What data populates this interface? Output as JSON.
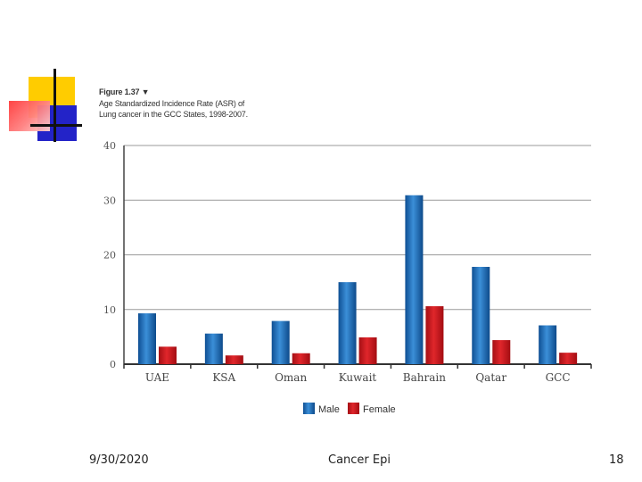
{
  "slide": {
    "footer_date": "9/30/2020",
    "footer_title": "Cancer Epi",
    "page_number": "18"
  },
  "figure": {
    "label": "Figure 1.37 ▼",
    "title_line1": "Age Standardized Incidence Rate (ASR) of",
    "title_line2": "Lung cancer in the GCC States, 1998-2007."
  },
  "chart_data": {
    "type": "bar",
    "title": "Age Standardized Incidence Rate (ASR) of Lung cancer in the GCC States, 1998-2007.",
    "xlabel": "",
    "ylabel": "",
    "ylim": [
      0,
      40
    ],
    "yticks": [
      0,
      10,
      20,
      30,
      40
    ],
    "grid": true,
    "legend": "bottom-center",
    "categories": [
      "UAE",
      "KSA",
      "Oman",
      "Kuwait",
      "Bahrain",
      "Qatar",
      "GCC"
    ],
    "series": [
      {
        "name": "Male",
        "color": "#1d6fb8",
        "values": [
          9.3,
          5.6,
          7.9,
          15.0,
          30.9,
          17.8,
          7.1
        ]
      },
      {
        "name": "Female",
        "color": "#c8151b",
        "values": [
          3.2,
          1.6,
          2.0,
          4.9,
          10.6,
          4.4,
          2.1
        ]
      }
    ]
  }
}
